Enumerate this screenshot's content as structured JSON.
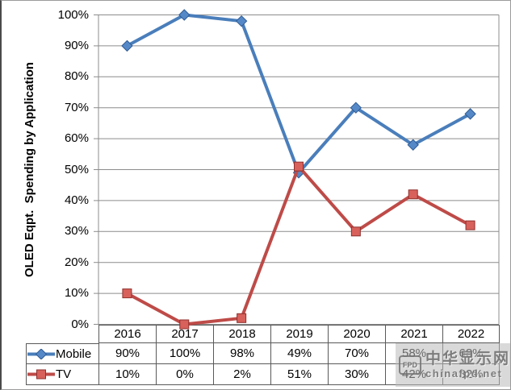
{
  "watermark": {
    "logo": "FPD",
    "site_name": "中华显示网",
    "site_url": "chinafpd.net"
  },
  "chart_data": {
    "type": "line",
    "title": "",
    "xlabel": "",
    "ylabel": "OLED Eqpt.  Spending by Application",
    "categories": [
      "2016",
      "2017",
      "2018",
      "2019",
      "2020",
      "2021",
      "2022"
    ],
    "series": [
      {
        "name": "Mobile",
        "values": [
          90,
          100,
          98,
          49,
          70,
          58,
          68
        ],
        "value_labels": [
          "90%",
          "100%",
          "98%",
          "49%",
          "70%",
          "58%",
          "68%"
        ],
        "marker": "diamond",
        "line_color": "#4A7EBB",
        "marker_fill": "#5588C7",
        "marker_border": "#2F5B94"
      },
      {
        "name": "TV",
        "values": [
          10,
          0,
          2,
          51,
          30,
          42,
          32
        ],
        "value_labels": [
          "10%",
          "0%",
          "2%",
          "51%",
          "30%",
          "42%",
          "32%"
        ],
        "marker": "square",
        "line_color": "#BE4B48",
        "marker_fill": "#D8615C",
        "marker_border": "#8F2F2C"
      }
    ],
    "ylim": [
      0,
      100
    ],
    "yticks": [
      0,
      10,
      20,
      30,
      40,
      50,
      60,
      70,
      80,
      90,
      100
    ],
    "ytick_labels": [
      "0%",
      "10%",
      "20%",
      "30%",
      "40%",
      "50%",
      "60%",
      "70%",
      "80%",
      "90%",
      "100%"
    ],
    "grid": true,
    "legend_position": "data-table",
    "colors": {
      "gridline": "#8C8C8C",
      "axis": "#8C8C8C",
      "table_border": "#595959",
      "text": "#000000"
    }
  }
}
